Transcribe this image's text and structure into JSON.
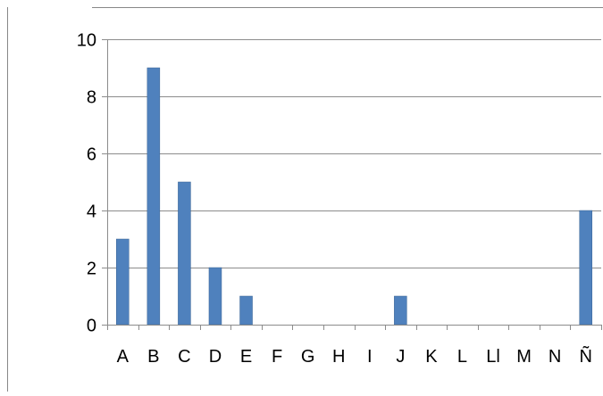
{
  "chart_data": {
    "type": "bar",
    "title": "",
    "xlabel": "",
    "ylabel": "",
    "categories": [
      "A",
      "B",
      "C",
      "D",
      "E",
      "F",
      "G",
      "H",
      "I",
      "J",
      "K",
      "L",
      "Ll",
      "M",
      "N",
      "Ñ"
    ],
    "values": [
      3,
      9,
      5,
      2,
      1,
      0,
      0,
      0,
      0,
      1,
      0,
      0,
      0,
      0,
      0,
      4
    ],
    "ylim": [
      0,
      10
    ],
    "yticks": [
      0,
      2,
      4,
      6,
      8,
      10
    ],
    "grid": true,
    "legend": "none",
    "colors": {
      "bar": "#4F81BD",
      "bar_edge": "#3A6494",
      "grid": "#8C8C8C",
      "axis": "#8C8C8C",
      "frame": "#888888"
    }
  }
}
